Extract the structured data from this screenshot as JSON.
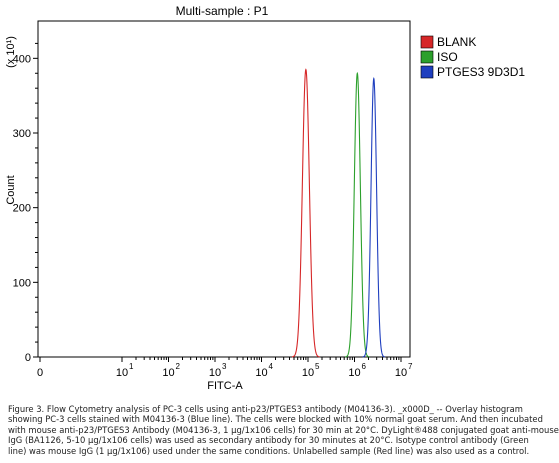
{
  "chart_data": {
    "type": "histogram",
    "title": "Multi-sample : P1",
    "xlabel": "FITC-A",
    "ylabel": "Count",
    "y_multiplier": "(x 10¹)",
    "x_scale": "log",
    "x_tick_labels": [
      "0",
      "10",
      "10",
      "10",
      "10",
      "10",
      "10",
      "10"
    ],
    "x_tick_exponents": [
      "",
      "1",
      "2",
      "3",
      "4",
      "5",
      "6",
      "7"
    ],
    "x_tick_values": [
      0,
      10,
      100,
      1000,
      10000,
      100000,
      1000000,
      10000000
    ],
    "xlim": [
      0,
      10000000
    ],
    "y_tick_labels": [
      "0",
      "100",
      "200",
      "300",
      "400"
    ],
    "ylim": [
      0,
      450
    ],
    "grid": false,
    "legend_position": "top-right",
    "series": [
      {
        "name": "BLANK",
        "color": "#d62728",
        "peak_x": 90000,
        "peak_y": 385,
        "width_decades": 0.075
      },
      {
        "name": "ISO",
        "color": "#2ca02c",
        "peak_x": 1150000,
        "peak_y": 380,
        "width_decades": 0.065
      },
      {
        "name": "PTGES3 9D3D1",
        "color": "#1f3fbf",
        "peak_x": 2600000,
        "peak_y": 373,
        "width_decades": 0.06
      }
    ]
  },
  "caption_lines": [
    "Figure 3. Flow Cytometry analysis of PC-3 cells using anti-p23/PTGES3 antibody (M04136-3). _x000D_ -- Overlay histogram",
    "showing PC-3 cells stained with M04136-3 (Blue line). The cells were blocked with 10% normal goat serum. And then incubated",
    "with mouse anti-p23/PTGES3 Antibody (M04136-3, 1 µg/1x106 cells) for 30 min at 20°C. DyLight®488 conjugated goat anti-mouse",
    "IgG (BA1126, 5-10 µg/1x106 cells) was used as secondary antibody for 30 minutes at 20°C. Isotype control antibody (Green",
    "line) was mouse IgG (1 µg/1x106) used under the same conditions. Unlabelled sample (Red line) was also used as a control."
  ]
}
